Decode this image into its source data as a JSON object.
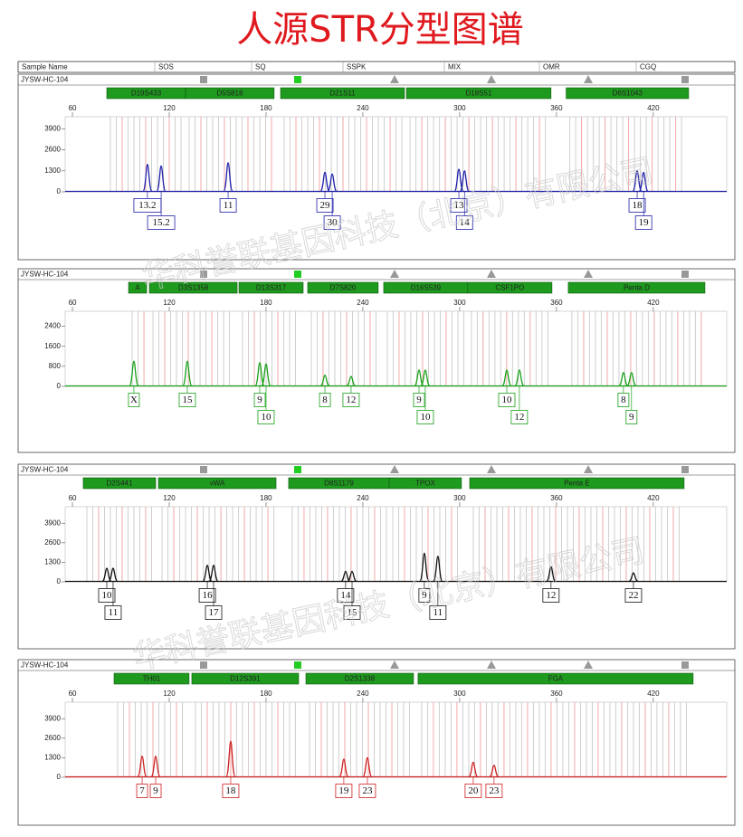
{
  "title": "人源STR分型图谱",
  "header": [
    "Sample Name",
    "SOS",
    "SQ",
    "SSPK",
    "MIX",
    "OMR",
    "CGQ"
  ],
  "watermark": "华科誉联基因科技（北京）有限公司",
  "panels": [
    {
      "sample": "JYSW-HC-104",
      "color": "#1f1fa8",
      "xlim": [
        55.5,
        465.5
      ],
      "xticks": [
        60,
        120,
        180,
        240,
        300,
        360,
        420
      ],
      "ylim": [
        0,
        4650
      ],
      "yticks": [
        0,
        1300,
        2600,
        3900
      ],
      "loci": [
        {
          "name": "D19S433",
          "range": [
            81.3,
            130.1
          ]
        },
        {
          "name": "D5S818",
          "range": [
            130.1,
            185
          ]
        },
        {
          "name": "D21S11",
          "range": [
            189,
            265.8
          ]
        },
        {
          "name": "D18S51",
          "range": [
            267,
            356.6
          ]
        },
        {
          "name": "D6S1043",
          "range": [
            366,
            441.9
          ]
        }
      ],
      "peaks": [
        {
          "label": "13.2",
          "x": 106.5,
          "height": 1700
        },
        {
          "label": "15.2",
          "x": 115,
          "height": 1600
        },
        {
          "label": "11",
          "x": 156.5,
          "height": 1800
        },
        {
          "label": "29",
          "x": 216.5,
          "height": 1200
        },
        {
          "label": "30",
          "x": 221,
          "height": 1100
        },
        {
          "label": "13",
          "x": 299.5,
          "height": 1400
        },
        {
          "label": "14",
          "x": 303,
          "height": 1300
        },
        {
          "label": "18",
          "x": 410,
          "height": 1300
        },
        {
          "label": "19",
          "x": 414,
          "height": 1200
        }
      ]
    },
    {
      "sample": "JYSW-HC-104",
      "color": "#18a018",
      "xlim": [
        55.5,
        465.5
      ],
      "xticks": [
        60,
        120,
        180,
        240,
        300,
        360,
        420
      ],
      "ylim": [
        0,
        3000
      ],
      "yticks": [
        0,
        800,
        1600,
        2400
      ],
      "loci": [
        {
          "name": "A",
          "range": [
            94.8,
            106
          ]
        },
        {
          "name": "D3S1358",
          "range": [
            107.7,
            162.1
          ]
        },
        {
          "name": "D13S317",
          "range": [
            163.2,
            203
          ]
        },
        {
          "name": "D7S820",
          "range": [
            205.8,
            249.5
          ]
        },
        {
          "name": "D16S539",
          "range": [
            252.9,
            305
          ]
        },
        {
          "name": "CSF1PO",
          "range": [
            305,
            357.2
          ]
        },
        {
          "name": "Penta D",
          "range": [
            367.3,
            452
          ]
        }
      ],
      "peaks": [
        {
          "label": "X",
          "x": 98.1,
          "height": 1000
        },
        {
          "label": "15",
          "x": 131.2,
          "height": 1000
        },
        {
          "label": "9",
          "x": 176.1,
          "height": 950
        },
        {
          "label": "10",
          "x": 180,
          "height": 900
        },
        {
          "label": "8",
          "x": 216.5,
          "height": 450
        },
        {
          "label": "12",
          "x": 232.7,
          "height": 400
        },
        {
          "label": "9",
          "x": 274.8,
          "height": 650
        },
        {
          "label": "10",
          "x": 278.7,
          "height": 650
        },
        {
          "label": "10",
          "x": 329.2,
          "height": 650
        },
        {
          "label": "12",
          "x": 337,
          "height": 650
        },
        {
          "label": "8",
          "x": 401.5,
          "height": 550
        },
        {
          "label": "9",
          "x": 406.5,
          "height": 550
        }
      ]
    },
    {
      "sample": "JYSW-HC-104",
      "color": "#111111",
      "xlim": [
        55.5,
        465.5
      ],
      "xticks": [
        60,
        120,
        180,
        240,
        300,
        360,
        420
      ],
      "ylim": [
        0,
        5000
      ],
      "yticks": [
        0,
        1300,
        2600,
        3900
      ],
      "loci": [
        {
          "name": "D2S441",
          "range": [
            66.7,
            111.6
          ]
        },
        {
          "name": "vWA",
          "range": [
            113.3,
            186.2
          ]
        },
        {
          "name": "D8S1179",
          "range": [
            194,
            256.3
          ]
        },
        {
          "name": "TPOX",
          "range": [
            256.3,
            301.1
          ]
        },
        {
          "name": "Penta E",
          "range": [
            306.2,
            439.1
          ]
        }
      ],
      "peaks": [
        {
          "label": "10",
          "x": 81.3,
          "height": 900
        },
        {
          "label": "11",
          "x": 85.2,
          "height": 900
        },
        {
          "label": "16",
          "x": 143.6,
          "height": 1100
        },
        {
          "label": "17",
          "x": 147.5,
          "height": 1100
        },
        {
          "label": "14",
          "x": 229.3,
          "height": 700
        },
        {
          "label": "15",
          "x": 233.3,
          "height": 700
        },
        {
          "label": "9",
          "x": 278.1,
          "height": 1900
        },
        {
          "label": "11",
          "x": 286.5,
          "height": 1700
        },
        {
          "label": "12",
          "x": 356.6,
          "height": 1000
        },
        {
          "label": "22",
          "x": 407.7,
          "height": 600
        }
      ]
    },
    {
      "sample": "JYSW-HC-104",
      "color": "#cc1f1f",
      "xlim": [
        55.5,
        465.5
      ],
      "xticks": [
        60,
        120,
        180,
        240,
        300,
        360,
        420
      ],
      "ylim": [
        0,
        5000
      ],
      "yticks": [
        0,
        1300,
        2600,
        3900
      ],
      "loci": [
        {
          "name": "TH01",
          "range": [
            85.8,
            132.3
          ]
        },
        {
          "name": "D12S391",
          "range": [
            134,
            200.2
          ]
        },
        {
          "name": "D2S1338",
          "range": [
            204.7,
            271.4
          ]
        },
        {
          "name": "FGA",
          "range": [
            274.2,
            444.7
          ]
        }
      ],
      "peaks": [
        {
          "label": "7",
          "x": 103.2,
          "height": 1400
        },
        {
          "label": "9",
          "x": 111.6,
          "height": 1400
        },
        {
          "label": "18",
          "x": 158.1,
          "height": 2400
        },
        {
          "label": "19",
          "x": 228.2,
          "height": 1200
        },
        {
          "label": "23",
          "x": 242.8,
          "height": 1300
        },
        {
          "label": "20",
          "x": 308.4,
          "height": 1000
        },
        {
          "label": "23",
          "x": 321.3,
          "height": 800
        }
      ]
    }
  ]
}
